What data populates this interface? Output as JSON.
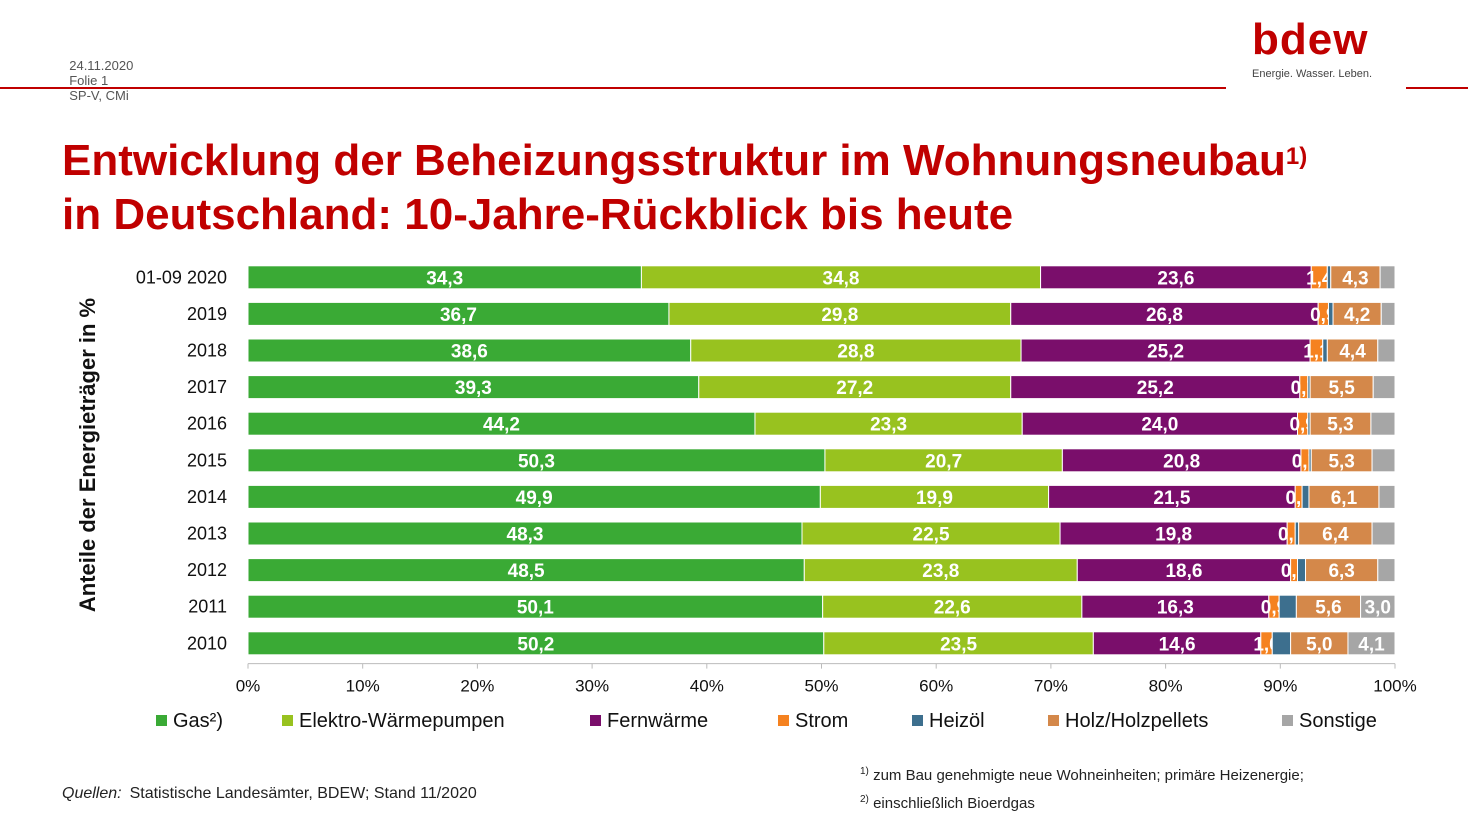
{
  "header": {
    "date": "24.11.2020",
    "slide": "Folie 1",
    "author": "SP-V, CMi"
  },
  "logo": {
    "word": "bdew",
    "tagline": "Energie. Wasser. Leben."
  },
  "title": {
    "line1": "Entwicklung der Beheizungsstruktur im Wohnungsneubau",
    "line1_sup": "1)",
    "line2": "in Deutschland: 10-Jahre-Rückblick bis heute"
  },
  "colors": {
    "Gas²)": "#3aaa35",
    "Elektro-Wärmepumpen": "#98c21f",
    "Fernwärme": "#7a0e6b",
    "Strom": "#f58220",
    "Heizöl": "#3d6f8e",
    "Holz/Holzpellets": "#d4884a",
    "Sonstige": "#a6a6a6"
  },
  "chart_data": {
    "type": "bar",
    "orientation": "horizontal",
    "stacked": true,
    "ylabel": "Anteile der Energieträger in %",
    "xlim": [
      0,
      100
    ],
    "x_ticks": [
      "0%",
      "10%",
      "20%",
      "30%",
      "40%",
      "50%",
      "60%",
      "70%",
      "80%",
      "90%",
      "100%"
    ],
    "legend_position": "bottom",
    "categories": [
      "01-09 2020",
      "2019",
      "2018",
      "2017",
      "2016",
      "2015",
      "2014",
      "2013",
      "2012",
      "2011",
      "2010"
    ],
    "series": [
      {
        "name": "Gas²)",
        "values": [
          34.3,
          36.7,
          38.6,
          39.3,
          44.2,
          50.3,
          49.9,
          48.3,
          48.5,
          50.1,
          50.2
        ],
        "labels": [
          "34,3",
          "36,7",
          "38,6",
          "39,3",
          "44,2",
          "50,3",
          "49,9",
          "48,3",
          "48,5",
          "50,1",
          "50,2"
        ]
      },
      {
        "name": "Elektro-Wärmepumpen",
        "values": [
          34.8,
          29.8,
          28.8,
          27.2,
          23.3,
          20.7,
          19.9,
          22.5,
          23.8,
          22.6,
          23.5
        ],
        "labels": [
          "34,8",
          "29,8",
          "28,8",
          "27,2",
          "23,3",
          "20,7",
          "19,9",
          "22,5",
          "23,8",
          "22,6",
          "23,5"
        ]
      },
      {
        "name": "Fernwärme",
        "values": [
          23.6,
          26.8,
          25.2,
          25.2,
          24.0,
          20.8,
          21.5,
          19.8,
          18.6,
          16.3,
          14.6
        ],
        "labels": [
          "23,6",
          "26,8",
          "25,2",
          "25,2",
          "24,0",
          "20,8",
          "21,5",
          "19,8",
          "18,6",
          "16,3",
          "14,6"
        ]
      },
      {
        "name": "Strom",
        "values": [
          1.4,
          0.9,
          1.1,
          0.7,
          0.9,
          0.7,
          0.6,
          0.7,
          0.6,
          0.9,
          1.0
        ],
        "labels": [
          "1,4",
          "0,9",
          "1,1",
          "0,7",
          "0,9",
          "0,7",
          "0,6",
          "0,7",
          "0,6",
          "0,9",
          "1,0"
        ]
      },
      {
        "name": "Heizöl",
        "values": [
          0.3,
          0.4,
          0.4,
          0.2,
          0.2,
          0.2,
          0.6,
          0.3,
          0.7,
          1.5,
          1.6
        ],
        "labels": [
          "",
          "",
          "",
          "",
          "",
          "",
          "",
          "",
          "",
          "",
          ""
        ]
      },
      {
        "name": "Holz/Holzpellets",
        "values": [
          4.3,
          4.2,
          4.4,
          5.5,
          5.3,
          5.3,
          6.1,
          6.4,
          6.3,
          5.6,
          5.0
        ],
        "labels": [
          "4,3",
          "4,2",
          "4,4",
          "5,5",
          "5,3",
          "5,3",
          "6,1",
          "6,4",
          "6,3",
          "5,6",
          "5,0"
        ]
      },
      {
        "name": "Sonstige",
        "values": [
          1.3,
          1.2,
          1.5,
          1.9,
          2.1,
          2.0,
          1.4,
          2.0,
          1.5,
          3.0,
          4.1
        ],
        "labels": [
          "",
          "",
          "",
          "",
          "",
          "",
          "",
          "",
          "",
          "3,0",
          "4,1"
        ]
      }
    ]
  },
  "footer": {
    "sources_label": "Quellen:",
    "sources_text": "Statistische Landesämter, BDEW; Stand 11/2020",
    "note1_mark": "1)",
    "note1": "zum Bau genehmigte neue Wohneinheiten; primäre Heizenergie;",
    "note2_mark": "2)",
    "note2": "einschließlich Bioerdgas"
  }
}
